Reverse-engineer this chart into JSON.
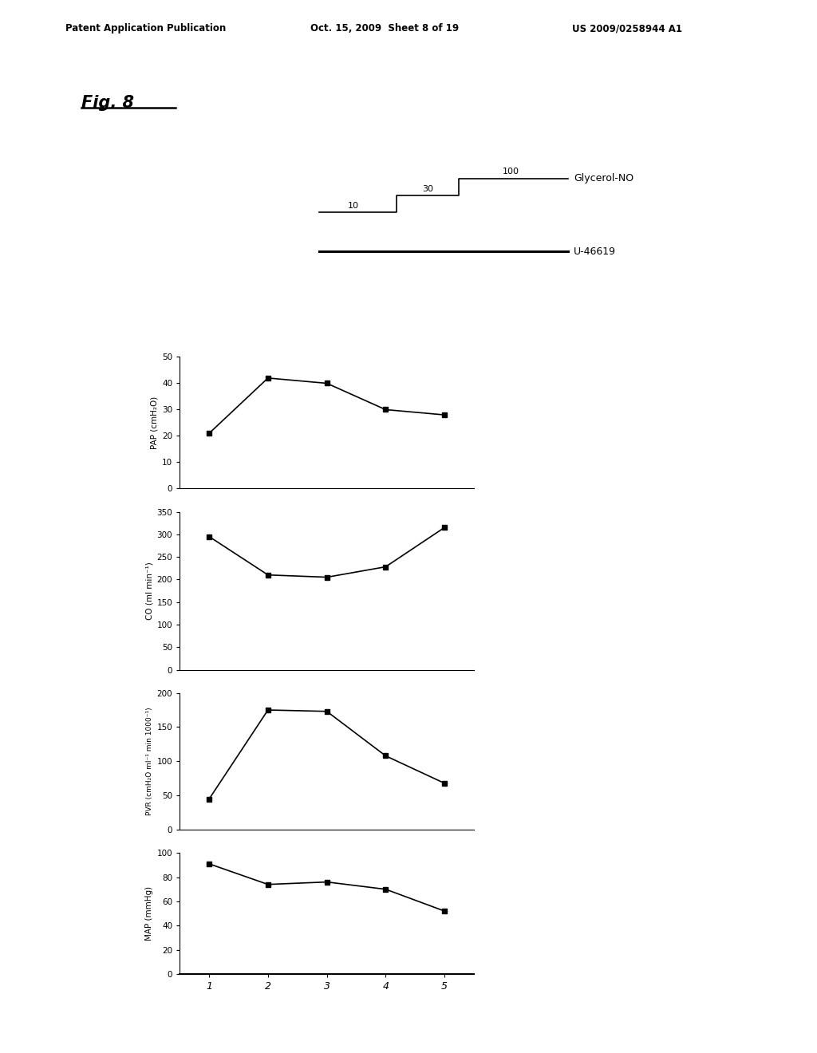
{
  "x_ticks": [
    1,
    2,
    3,
    4,
    5
  ],
  "x_labels": [
    "1",
    "2",
    "3",
    "4",
    "5"
  ],
  "pap_data": [
    21,
    42,
    40,
    30,
    28
  ],
  "co_data": [
    295,
    210,
    205,
    228,
    315
  ],
  "pvr_data": [
    45,
    175,
    173,
    108,
    68
  ],
  "map_data": [
    91,
    74,
    76,
    70,
    52
  ],
  "pap_ylim": [
    0,
    50
  ],
  "pap_yticks": [
    0,
    10,
    20,
    30,
    40,
    50
  ],
  "co_ylim": [
    0,
    350
  ],
  "co_yticks": [
    0,
    50,
    100,
    150,
    200,
    250,
    300,
    350
  ],
  "pvr_ylim": [
    0,
    200
  ],
  "pvr_yticks": [
    0,
    50,
    100,
    150,
    200
  ],
  "map_ylim": [
    0,
    100
  ],
  "map_yticks": [
    0,
    20,
    40,
    60,
    80,
    100
  ],
  "pap_ylabel": "PAP (cmH₂O)",
  "co_ylabel": "CO (ml min⁻¹)",
  "pvr_ylabel": "PVR (cmH₂O ml⁻¹ min 1000⁻¹)",
  "map_ylabel": "MAP (mmHg)",
  "legend_glycerol": "Glycerol-NO",
  "legend_u46619": "U-46619",
  "dose_labels": [
    "10",
    "30",
    "100"
  ],
  "fig_label": "Fig. 8",
  "header_left": "Patent Application Publication",
  "header_center": "Oct. 15, 2009  Sheet 8 of 19",
  "header_right": "US 2009/0258944 A1",
  "bg_color": "#ffffff",
  "line_color": "#000000",
  "marker": "s",
  "markersize": 4
}
